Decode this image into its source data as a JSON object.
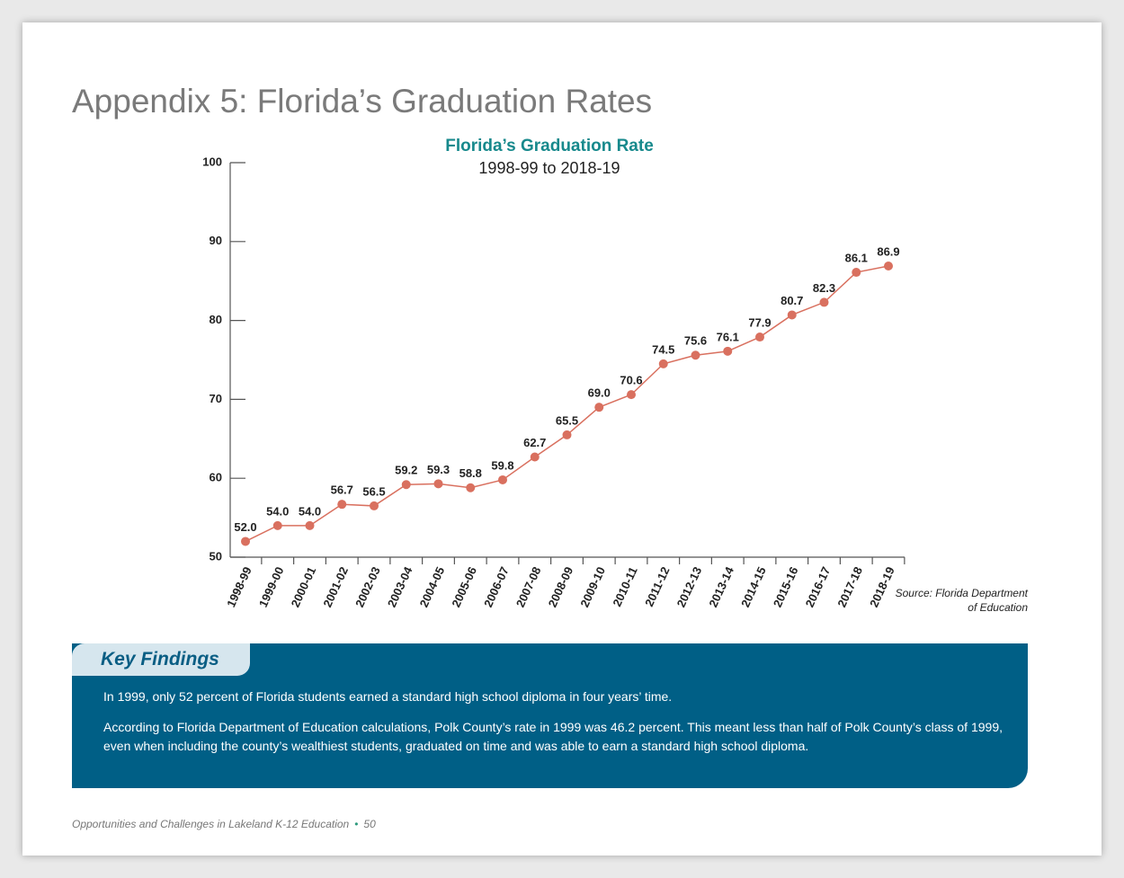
{
  "header": {
    "title": "Appendix 5: Florida’s Graduation Rates"
  },
  "chart_data": {
    "type": "line",
    "title": "Florida’s Graduation Rate",
    "subtitle": "1998-99 to 2018-19",
    "categories": [
      "1998-99",
      "1999-00",
      "2000-01",
      "2001-02",
      "2002-03",
      "2003-04",
      "2004-05",
      "2005-06",
      "2006-07",
      "2007-08",
      "2008-09",
      "2009-10",
      "2010-11",
      "2011-12",
      "2012-13",
      "2013-14",
      "2014-15",
      "2015-16",
      "2016-17",
      "2017-18",
      "2018-19"
    ],
    "values": [
      52.0,
      54.0,
      54.0,
      56.7,
      56.5,
      59.2,
      59.3,
      58.8,
      59.8,
      62.7,
      65.5,
      69.0,
      70.6,
      74.5,
      75.6,
      76.1,
      77.9,
      80.7,
      82.3,
      86.1,
      86.9
    ],
    "value_labels": [
      "52.0",
      "54.0",
      "54.0",
      "56.7",
      "56.5",
      "59.2",
      "59.3",
      "58.8",
      "59.8",
      "62.7",
      "65.5",
      "69.0",
      "70.6",
      "74.5",
      "75.6",
      "76.1",
      "77.9",
      "80.7",
      "82.3",
      "86.1",
      "86.9"
    ],
    "color": "#d9705f",
    "ylim": [
      50,
      100
    ],
    "yticks": [
      50,
      60,
      70,
      80,
      90,
      100
    ],
    "grid": false,
    "source": [
      "Source: Florida Department",
      "of Education"
    ]
  },
  "key_findings": {
    "heading": "Key Findings",
    "paragraphs": [
      "In 1999, only 52 percent of Florida students earned a standard high school diploma in four years’ time.",
      "According to Florida Department of Education calculations, Polk County’s rate in 1999 was 46.2 percent. This meant less than half of Polk County’s class of 1999, even when including the county’s wealthiest students, graduated on time and was able to earn a standard high school diploma."
    ]
  },
  "footer": {
    "text": "Opportunities and Challenges in Lakeland K-12 Education",
    "page": 50
  }
}
